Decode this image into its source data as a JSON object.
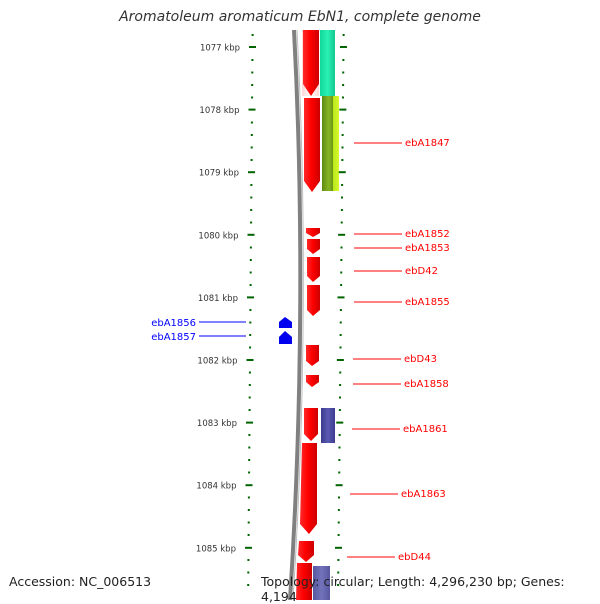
{
  "title": "Aromatoleum aromaticum EbN1, complete genome",
  "footer": {
    "accession": "Accession: NC_006513",
    "topology": "Topology: circular; Length: 4,296,230 bp; Genes: 4,194"
  },
  "colors": {
    "forward_gene": "#ff0000",
    "reverse_gene": "#0000ff",
    "ruler_ticks": "#006400",
    "backbone": "#808080",
    "feature_teal": "#1aebaa",
    "feature_olive": "#7aa820",
    "feature_lime": "#c8f020",
    "feature_purple": "#4a4aa0"
  },
  "ruler": {
    "unit": "kbp",
    "labels": [
      "1077 kbp",
      "1078 kbp",
      "1079 kbp",
      "1080 kbp",
      "1081 kbp",
      "1082 kbp",
      "1083 kbp",
      "1084 kbp",
      "1085 kbp"
    ]
  },
  "gene_labels": [
    {
      "text": "ebA1847",
      "strand": "forward"
    },
    {
      "text": "ebA1852",
      "strand": "forward"
    },
    {
      "text": "ebA1853",
      "strand": "forward"
    },
    {
      "text": "ebD42",
      "strand": "forward"
    },
    {
      "text": "ebA1855",
      "strand": "forward"
    },
    {
      "text": "ebA1856",
      "strand": "reverse"
    },
    {
      "text": "ebA1857",
      "strand": "reverse"
    },
    {
      "text": "ebD43",
      "strand": "forward"
    },
    {
      "text": "ebA1858",
      "strand": "forward"
    },
    {
      "text": "ebA1861",
      "strand": "forward"
    },
    {
      "text": "ebA1863",
      "strand": "forward"
    },
    {
      "text": "ebD44",
      "strand": "forward"
    }
  ]
}
